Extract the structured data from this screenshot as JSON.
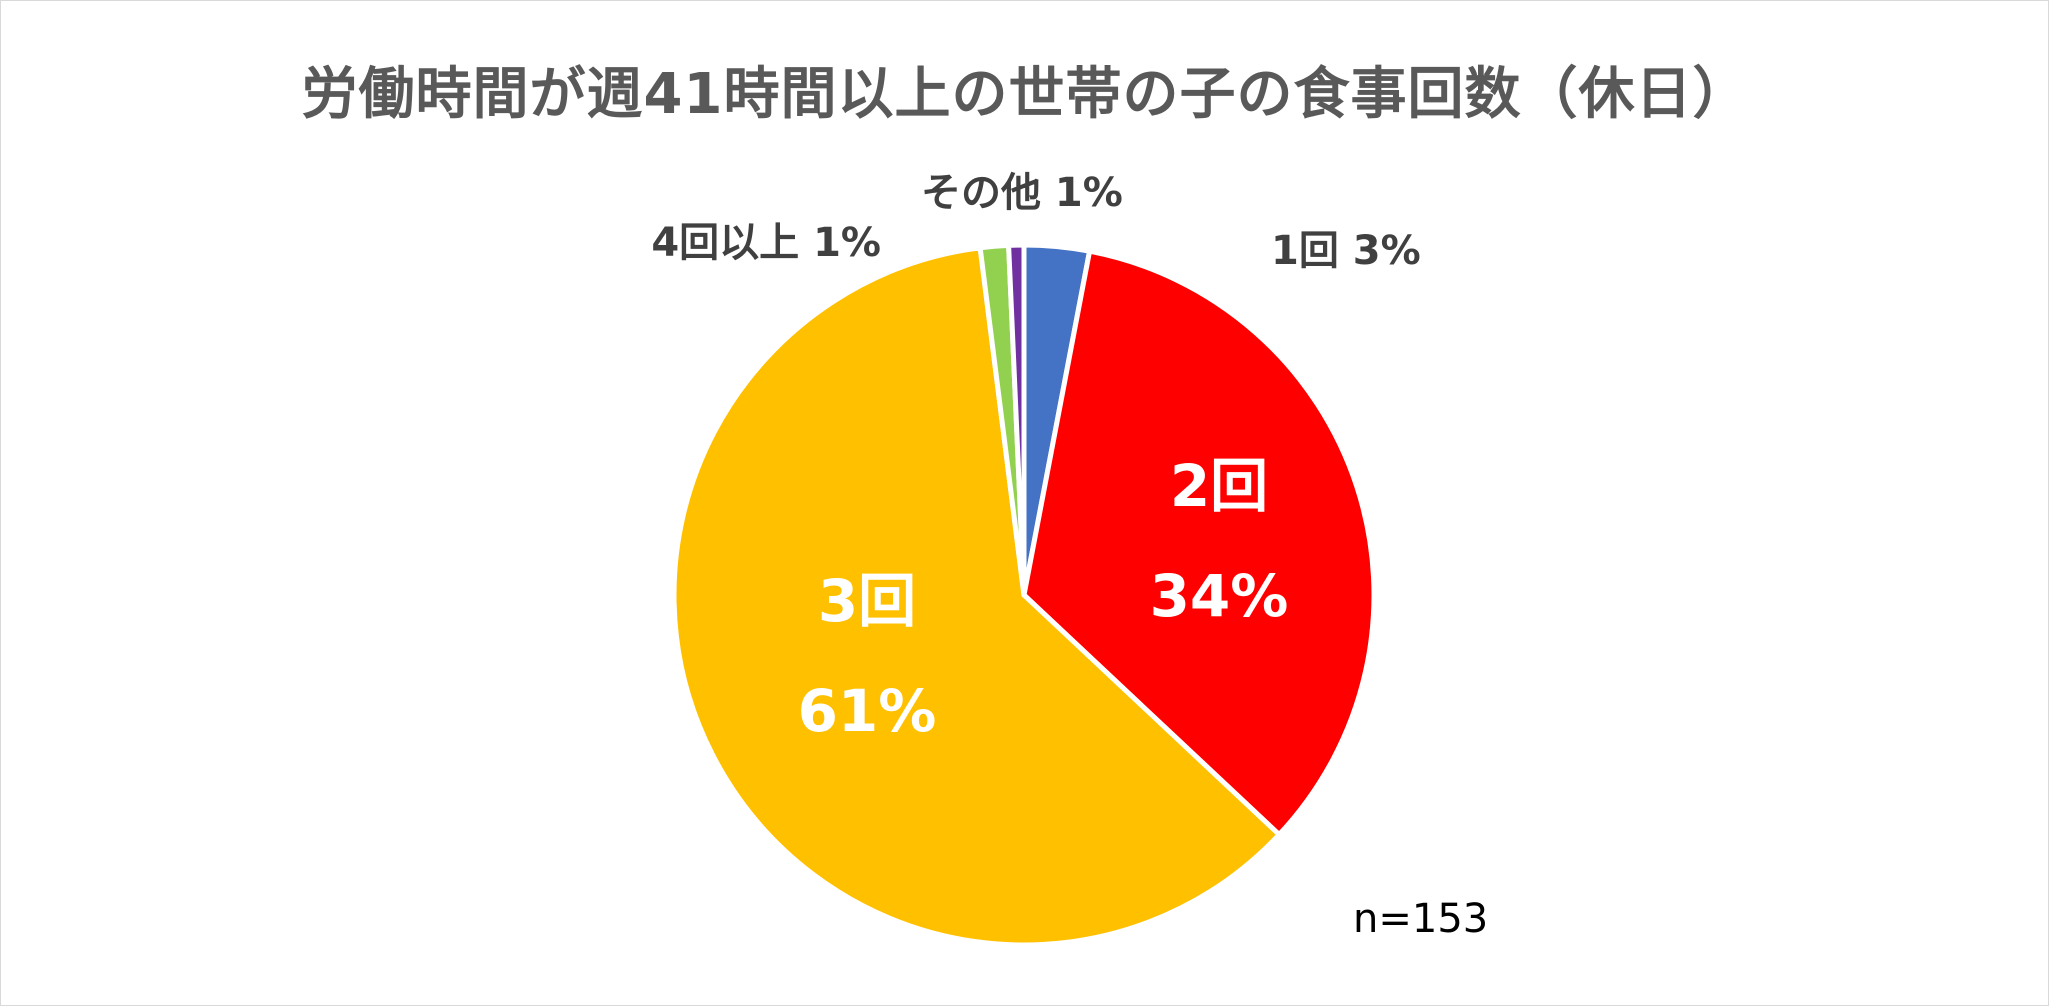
{
  "chart_data": {
    "type": "pie",
    "title": "労働時間が週41時間以上の世帯の子の食事回数（休日）",
    "note": "n=153",
    "slices": [
      {
        "label": "1回",
        "pct_label": "3%",
        "value": 3,
        "color": "#4472C4"
      },
      {
        "label": "2回",
        "pct_label": "34%",
        "value": 34,
        "color": "#FF0000"
      },
      {
        "label": "3回",
        "pct_label": "61%",
        "value": 61,
        "color": "#FFC000"
      },
      {
        "label": "4回以上",
        "pct_label": "1%",
        "value": 1.3,
        "color": "#92D050"
      },
      {
        "label": "その他",
        "pct_label": "1%",
        "value": 0.7,
        "color": "#7030A0"
      }
    ]
  }
}
